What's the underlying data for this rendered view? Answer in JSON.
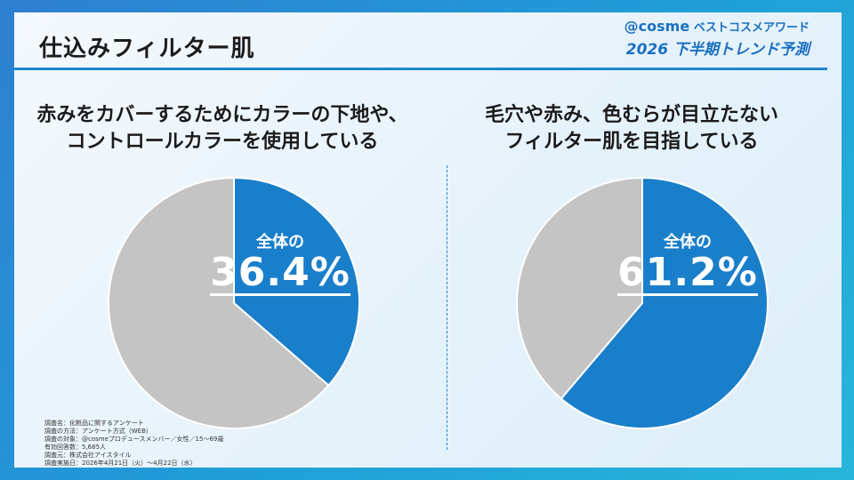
{
  "title": "仕込みフィルター肌",
  "brand": {
    "logo": "@cosme",
    "line1": "ベストコスメアワード",
    "line2": "2026 下半期トレンド予測"
  },
  "colors": {
    "accent": "#1f86d0",
    "slice_highlight": "#1a7fcb",
    "slice_rest": "#c4c4c4"
  },
  "chart_data": [
    {
      "type": "pie",
      "title_lines": [
        "赤みをカバーするためにカラーの下地や、",
        "コントロールカラーを使用している"
      ],
      "values": [
        36.4,
        63.6
      ],
      "label_prefix": "全体の",
      "label_value": "36.4%"
    },
    {
      "type": "pie",
      "title_lines": [
        "毛穴や赤み、色むらが目立たない",
        "フィルター肌を目指している"
      ],
      "values": [
        61.2,
        38.8
      ],
      "label_prefix": "全体の",
      "label_value": "61.2%"
    }
  ],
  "survey": [
    "調査名：化粧品に関するアンケート",
    "調査の方法：アンケート方式（WEB）",
    "調査の対象：@cosmeプロデュースメンバー／女性／15～69歳",
    "有効回答数：5,685人",
    "調査元：株式会社アイスタイル",
    "調査実施日：2026年4月21日（火）～4月22日（水）"
  ]
}
